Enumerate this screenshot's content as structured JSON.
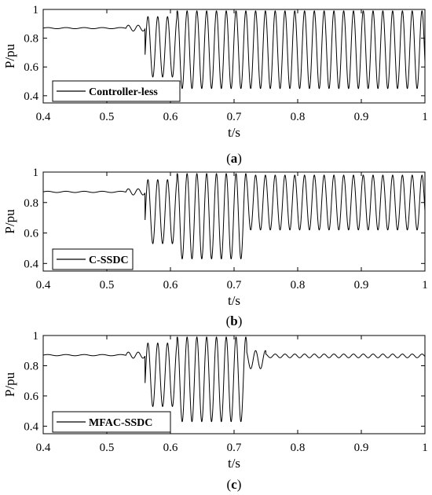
{
  "chart_data": [
    {
      "type": "line",
      "caption": "(a)",
      "caption_letter": "a",
      "xlabel": "t/s",
      "ylabel": "P/pu",
      "xlim": [
        0.4,
        1.0
      ],
      "ylim": [
        0.35,
        1.0
      ],
      "xticks": [
        "0.4",
        "0.5",
        "0.6",
        "0.7",
        "0.8",
        "0.9",
        "1"
      ],
      "yticks": [
        "0.4",
        "0.6",
        "0.8",
        "1"
      ],
      "legend_position": "bottom-left",
      "series": [
        {
          "name": "Controller-less",
          "signal": {
            "steady_value": 0.87,
            "disturbance_start_t": 0.53,
            "oscillation_frequency_hz": 65,
            "segments": [
              {
                "t_start": 0.4,
                "t_end": 0.53,
                "center": 0.87,
                "amplitude": 0.004
              },
              {
                "t_start": 0.53,
                "t_end": 0.56,
                "center": 0.87,
                "amplitude": 0.02
              },
              {
                "t_start": 0.56,
                "t_end": 0.61,
                "center": 0.74,
                "amplitude": 0.21
              },
              {
                "t_start": 0.61,
                "t_end": 1.0,
                "center": 0.72,
                "amplitude": 0.27
              }
            ]
          }
        }
      ]
    },
    {
      "type": "line",
      "caption": "(b)",
      "caption_letter": "b",
      "xlabel": "t/s",
      "ylabel": "P/pu",
      "xlim": [
        0.4,
        1.0
      ],
      "ylim": [
        0.35,
        1.0
      ],
      "xticks": [
        "0.4",
        "0.5",
        "0.6",
        "0.7",
        "0.8",
        "0.9",
        "1"
      ],
      "yticks": [
        "0.4",
        "0.6",
        "0.8",
        "1"
      ],
      "legend_position": "bottom-left",
      "series": [
        {
          "name": "C-SSDC",
          "signal": {
            "steady_value": 0.87,
            "disturbance_start_t": 0.53,
            "oscillation_frequency_hz": 65,
            "segments": [
              {
                "t_start": 0.4,
                "t_end": 0.53,
                "center": 0.87,
                "amplitude": 0.004
              },
              {
                "t_start": 0.53,
                "t_end": 0.56,
                "center": 0.87,
                "amplitude": 0.02
              },
              {
                "t_start": 0.56,
                "t_end": 0.61,
                "center": 0.74,
                "amplitude": 0.21
              },
              {
                "t_start": 0.61,
                "t_end": 0.72,
                "center": 0.71,
                "amplitude": 0.28
              },
              {
                "t_start": 0.72,
                "t_end": 1.0,
                "center": 0.8,
                "amplitude": 0.18
              }
            ]
          }
        }
      ]
    },
    {
      "type": "line",
      "caption": "(c)",
      "caption_letter": "c",
      "xlabel": "t/s",
      "ylabel": "P/pu",
      "xlim": [
        0.4,
        1.0
      ],
      "ylim": [
        0.35,
        1.0
      ],
      "xticks": [
        "0.4",
        "0.5",
        "0.6",
        "0.7",
        "0.8",
        "0.9",
        "1"
      ],
      "yticks": [
        "0.4",
        "0.6",
        "0.8",
        "1"
      ],
      "legend_position": "bottom-left",
      "series": [
        {
          "name": "MFAC-SSDC",
          "signal": {
            "steady_value": 0.87,
            "disturbance_start_t": 0.53,
            "oscillation_frequency_hz": 65,
            "segments": [
              {
                "t_start": 0.4,
                "t_end": 0.53,
                "center": 0.87,
                "amplitude": 0.004
              },
              {
                "t_start": 0.53,
                "t_end": 0.56,
                "center": 0.87,
                "amplitude": 0.02
              },
              {
                "t_start": 0.56,
                "t_end": 0.61,
                "center": 0.74,
                "amplitude": 0.21
              },
              {
                "t_start": 0.61,
                "t_end": 0.72,
                "center": 0.71,
                "amplitude": 0.28
              },
              {
                "t_start": 0.72,
                "t_end": 0.75,
                "center": 0.84,
                "amplitude": 0.06
              },
              {
                "t_start": 0.75,
                "t_end": 1.0,
                "center": 0.865,
                "amplitude": 0.012
              }
            ]
          }
        }
      ]
    }
  ]
}
